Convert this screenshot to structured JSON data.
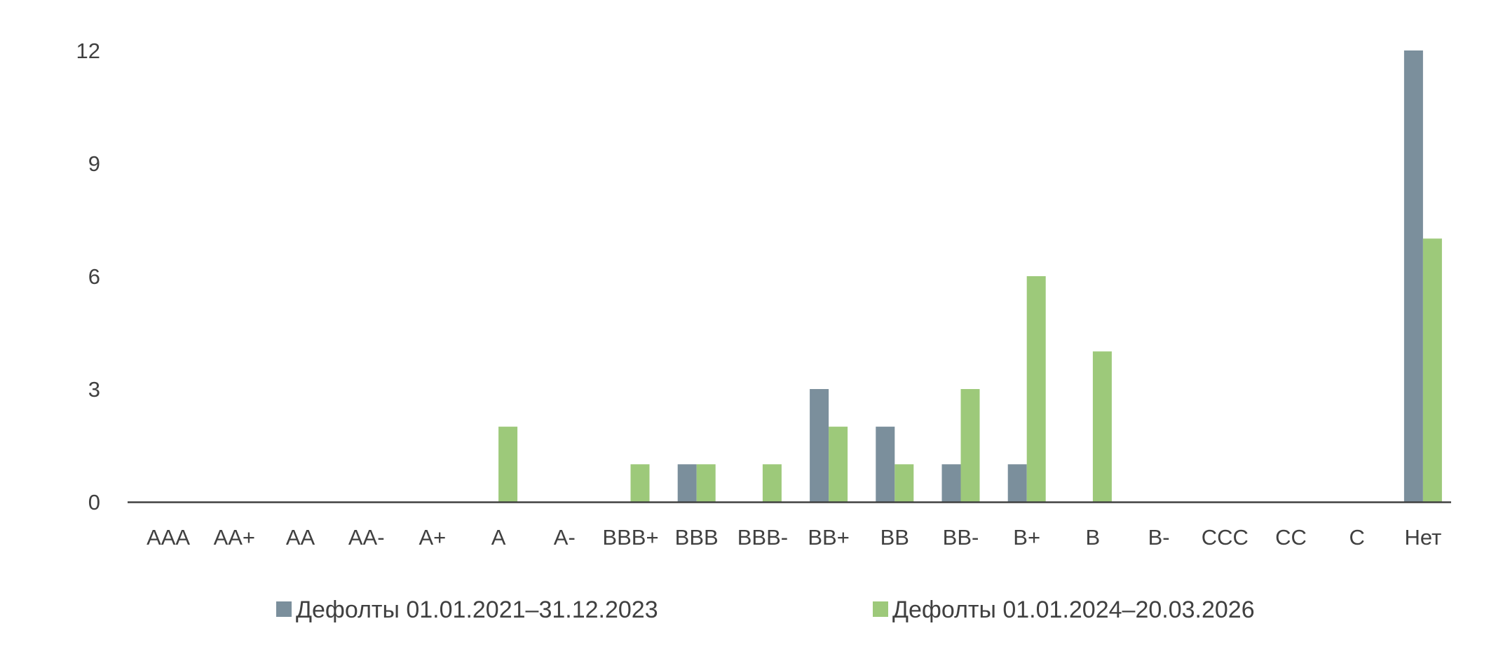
{
  "chart_data": {
    "type": "bar",
    "title": "",
    "xlabel": "",
    "ylabel": "",
    "categories": [
      "AAA",
      "AA+",
      "AA",
      "AA-",
      "A+",
      "A",
      "A-",
      "BBB+",
      "BBB",
      "BBB-",
      "BB+",
      "BB",
      "BB-",
      "B+",
      "B",
      "B-",
      "CCC",
      "CC",
      "C",
      "Нет"
    ],
    "series": [
      {
        "name": "Дефолты 01.01.2021–31.12.2023",
        "color": "#7b8f9c",
        "values": [
          0,
          0,
          0,
          0,
          0,
          0,
          0,
          0,
          1,
          0,
          3,
          2,
          1,
          1,
          0,
          0,
          0,
          0,
          0,
          12
        ]
      },
      {
        "name": "Дефолты 01.01.2024–20.03.2026",
        "color": "#9dc97a",
        "values": [
          0,
          0,
          0,
          0,
          0,
          2,
          0,
          1,
          1,
          1,
          2,
          1,
          3,
          6,
          4,
          0,
          0,
          0,
          0,
          7
        ]
      }
    ],
    "ylim": [
      0,
      12
    ],
    "yticks": [
      0,
      3,
      6,
      9,
      12
    ],
    "grid": false,
    "legend_position": "bottom"
  }
}
